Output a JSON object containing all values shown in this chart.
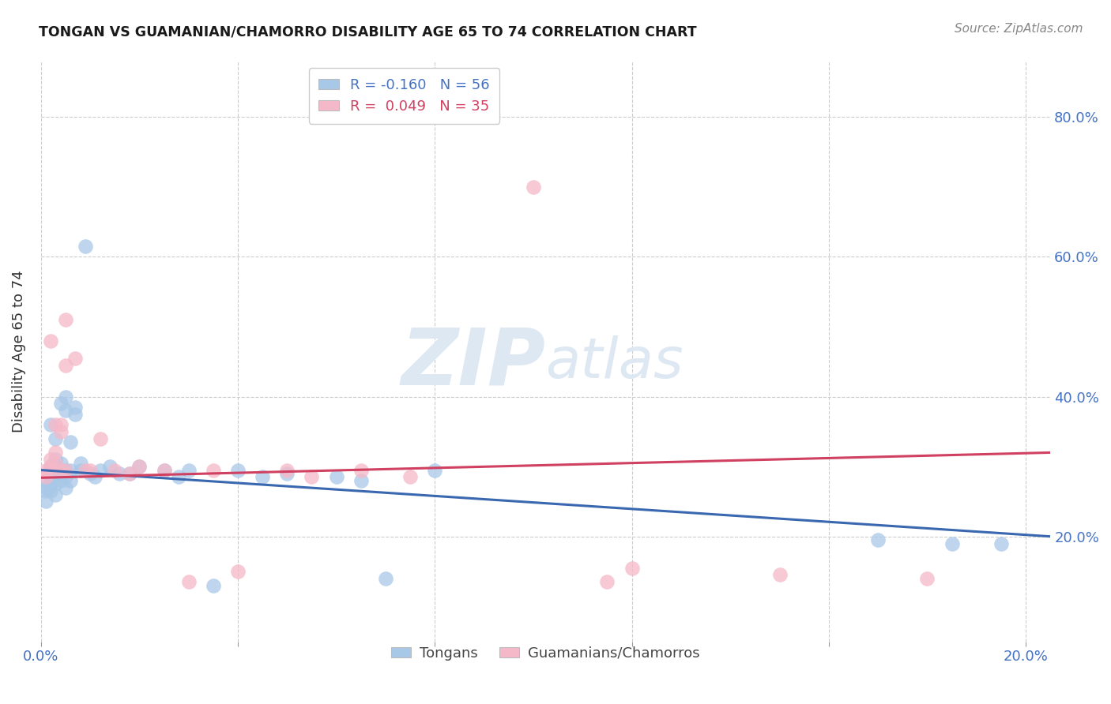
{
  "title": "TONGAN VS GUAMANIAN/CHAMORRO DISABILITY AGE 65 TO 74 CORRELATION CHART",
  "source": "Source: ZipAtlas.com",
  "ylabel": "Disability Age 65 to 74",
  "xlim": [
    0.0,
    0.205
  ],
  "ylim": [
    0.05,
    0.88
  ],
  "blue_color": "#a8c8e8",
  "pink_color": "#f5b8c8",
  "blue_line_color": "#3a68b0",
  "pink_line_color": "#d04060",
  "legend_label1": "Tongans",
  "legend_label2": "Guamanians/Chamorros",
  "legend_text1": "R = -0.160   N = 56",
  "legend_text2": "R =  0.049   N = 35",
  "blue_points_x": [
    0.001,
    0.001,
    0.001,
    0.001,
    0.002,
    0.002,
    0.002,
    0.002,
    0.002,
    0.002,
    0.003,
    0.003,
    0.003,
    0.003,
    0.003,
    0.003,
    0.003,
    0.004,
    0.004,
    0.004,
    0.004,
    0.004,
    0.005,
    0.005,
    0.005,
    0.005,
    0.005,
    0.006,
    0.006,
    0.006,
    0.007,
    0.007,
    0.008,
    0.008,
    0.009,
    0.01,
    0.011,
    0.012,
    0.014,
    0.016,
    0.018,
    0.02,
    0.025,
    0.028,
    0.03,
    0.035,
    0.04,
    0.045,
    0.05,
    0.06,
    0.065,
    0.07,
    0.08,
    0.17,
    0.185,
    0.195
  ],
  "blue_points_y": [
    0.27,
    0.28,
    0.265,
    0.25,
    0.36,
    0.3,
    0.29,
    0.285,
    0.275,
    0.265,
    0.31,
    0.295,
    0.285,
    0.275,
    0.3,
    0.26,
    0.34,
    0.39,
    0.305,
    0.295,
    0.29,
    0.28,
    0.4,
    0.38,
    0.295,
    0.285,
    0.27,
    0.335,
    0.295,
    0.28,
    0.385,
    0.375,
    0.305,
    0.295,
    0.615,
    0.29,
    0.285,
    0.295,
    0.3,
    0.29,
    0.29,
    0.3,
    0.295,
    0.285,
    0.295,
    0.13,
    0.295,
    0.285,
    0.29,
    0.285,
    0.28,
    0.14,
    0.295,
    0.195,
    0.19,
    0.19
  ],
  "pink_points_x": [
    0.001,
    0.001,
    0.002,
    0.002,
    0.002,
    0.002,
    0.003,
    0.003,
    0.003,
    0.004,
    0.004,
    0.004,
    0.005,
    0.005,
    0.005,
    0.007,
    0.009,
    0.01,
    0.012,
    0.015,
    0.018,
    0.02,
    0.025,
    0.03,
    0.035,
    0.04,
    0.05,
    0.055,
    0.065,
    0.075,
    0.1,
    0.115,
    0.12,
    0.15,
    0.18
  ],
  "pink_points_y": [
    0.295,
    0.285,
    0.48,
    0.31,
    0.3,
    0.295,
    0.36,
    0.32,
    0.305,
    0.36,
    0.35,
    0.295,
    0.51,
    0.445,
    0.295,
    0.455,
    0.295,
    0.295,
    0.34,
    0.295,
    0.29,
    0.3,
    0.295,
    0.135,
    0.295,
    0.15,
    0.295,
    0.285,
    0.295,
    0.285,
    0.7,
    0.135,
    0.155,
    0.145,
    0.14
  ]
}
